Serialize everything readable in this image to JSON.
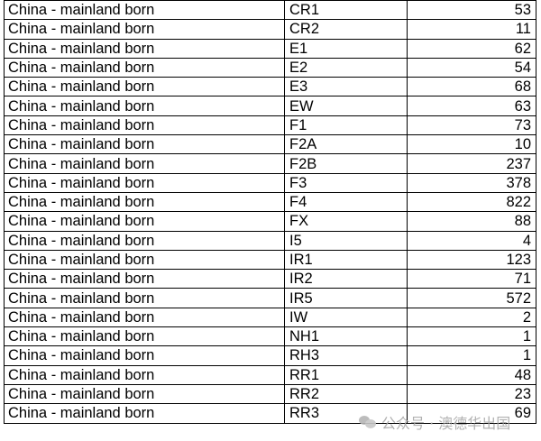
{
  "rows": [
    {
      "country": "China - mainland born",
      "class": "CR1",
      "count": "53"
    },
    {
      "country": "China - mainland born",
      "class": "CR2",
      "count": "11"
    },
    {
      "country": "China - mainland born",
      "class": "E1",
      "count": "62"
    },
    {
      "country": "China - mainland born",
      "class": "E2",
      "count": "54"
    },
    {
      "country": "China - mainland born",
      "class": "E3",
      "count": "68"
    },
    {
      "country": "China - mainland born",
      "class": "EW",
      "count": "63"
    },
    {
      "country": "China - mainland born",
      "class": "F1",
      "count": "73"
    },
    {
      "country": "China - mainland born",
      "class": "F2A",
      "count": "10"
    },
    {
      "country": "China - mainland born",
      "class": "F2B",
      "count": "237"
    },
    {
      "country": "China - mainland born",
      "class": "F3",
      "count": "378"
    },
    {
      "country": "China - mainland born",
      "class": "F4",
      "count": "822"
    },
    {
      "country": "China - mainland born",
      "class": "FX",
      "count": "88"
    },
    {
      "country": "China - mainland born",
      "class": "I5",
      "count": "4"
    },
    {
      "country": "China - mainland born",
      "class": "IR1",
      "count": "123"
    },
    {
      "country": "China - mainland born",
      "class": "IR2",
      "count": "71"
    },
    {
      "country": "China - mainland born",
      "class": "IR5",
      "count": "572"
    },
    {
      "country": "China - mainland born",
      "class": "IW",
      "count": "2"
    },
    {
      "country": "China - mainland born",
      "class": "NH1",
      "count": "1"
    },
    {
      "country": "China - mainland born",
      "class": "RH3",
      "count": "1"
    },
    {
      "country": "China - mainland born",
      "class": "RR1",
      "count": "48"
    },
    {
      "country": "China - mainland born",
      "class": "RR2",
      "count": "23"
    },
    {
      "country": "China - mainland born",
      "class": "RR3",
      "count": "69"
    }
  ],
  "watermark": {
    "icon": "wechat-icon",
    "text": "公众号 · 澳德华出国"
  }
}
